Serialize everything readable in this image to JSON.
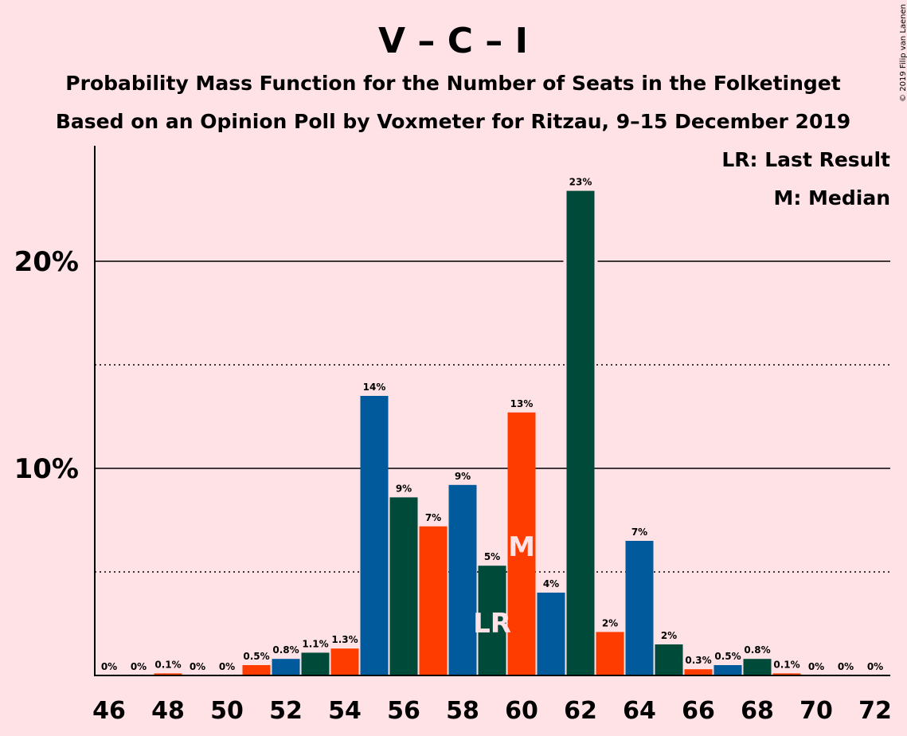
{
  "chart_data": {
    "type": "bar",
    "title": "V – C – I",
    "subtitle_line1": "Probability Mass Function for the Number of Seats in the Folketinget",
    "subtitle_line2": "Based on an Opinion Poll by Voxmeter for Ritzau, 9–15 December 2019",
    "copyright": "© 2019 Filip van Laenen",
    "legend": {
      "last_result": "LR: Last Result",
      "median": "M: Median",
      "placement": "top-right"
    },
    "x": [
      46,
      47,
      48,
      49,
      50,
      51,
      52,
      53,
      54,
      55,
      56,
      57,
      58,
      59,
      60,
      61,
      62,
      63,
      64,
      65,
      66,
      67,
      68,
      69,
      70,
      71,
      72
    ],
    "values": [
      0,
      0,
      0.1,
      0,
      0,
      0.5,
      0.8,
      1.1,
      1.3,
      13.5,
      8.6,
      7.2,
      9.2,
      5.3,
      12.7,
      4.0,
      23.4,
      2.1,
      6.5,
      1.5,
      0.3,
      0.5,
      0.8,
      0.1,
      0,
      0,
      0
    ],
    "labels": [
      "0%",
      "0%",
      "0.1%",
      "0%",
      "0%",
      "0.5%",
      "0.8%",
      "1.1%",
      "1.3%",
      "14%",
      "9%",
      "7%",
      "9%",
      "5%",
      "13%",
      "4%",
      "23%",
      "2%",
      "7%",
      "2%",
      "0.3%",
      "0.5%",
      "0.8%",
      "0.1%",
      "0%",
      "0%",
      "0%"
    ],
    "x_tick_labels": [
      "46",
      "48",
      "50",
      "52",
      "54",
      "56",
      "58",
      "60",
      "62",
      "64",
      "66",
      "68",
      "70",
      "72"
    ],
    "y_tick_labels": [
      "10%",
      "20%"
    ],
    "y_gridlines_solid": [
      10,
      20
    ],
    "y_gridlines_dotted": [
      5,
      15
    ],
    "ylim": [
      0,
      25
    ],
    "last_result_seat": 59,
    "last_result_label": "LR",
    "median_seat": 60,
    "median_label": "M",
    "colors": {
      "background": "#FFE2E6",
      "blue": "#005A9C",
      "green": "#004A3A",
      "red": "#FF3C00",
      "marker_text": "#FFE2E6"
    }
  }
}
